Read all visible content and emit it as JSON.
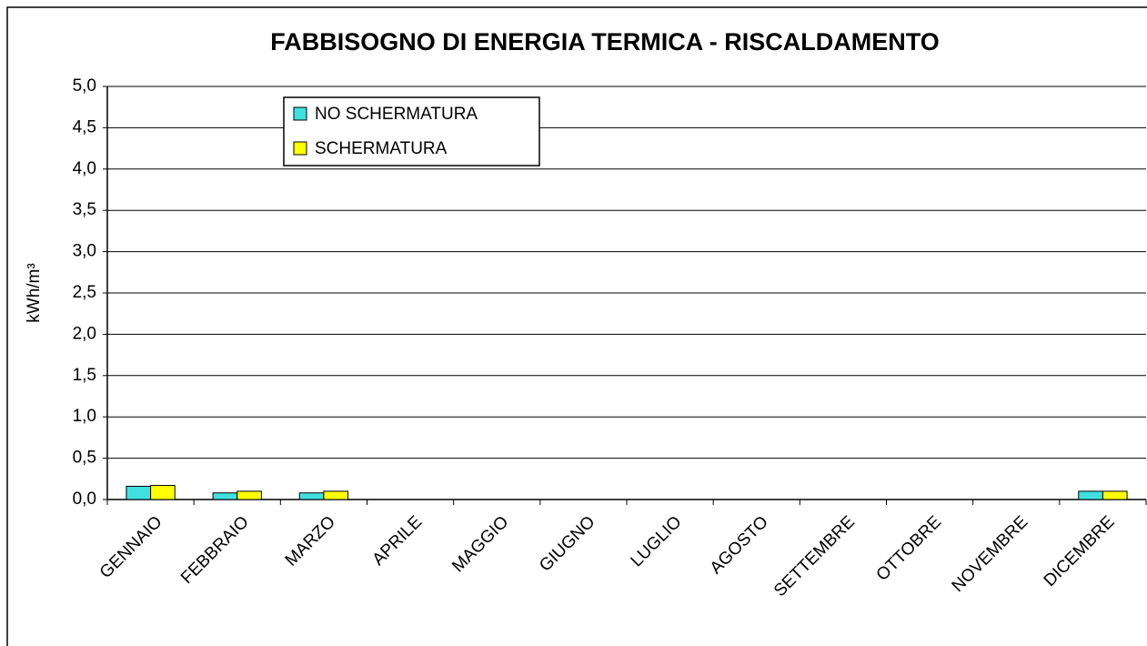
{
  "chart_data": {
    "type": "bar",
    "title": "FABBISOGNO DI ENERGIA TERMICA - RISCALDAMENTO",
    "y_label": "kWh/m³",
    "categories": [
      "GENNAIO",
      "FEBBRAIO",
      "MARZO",
      "APRILE",
      "MAGGIO",
      "GIUGNO",
      "LUGLIO",
      "AGOSTO",
      "SETTEMBRE",
      "OTTOBRE",
      "NOVEMBRE",
      "DICEMBRE"
    ],
    "series": [
      {
        "name": "NO SCHERMATURA",
        "color": "#40E0E0",
        "values": [
          0.16,
          0.08,
          0.08,
          0,
          0,
          0,
          0,
          0,
          0,
          0,
          0,
          0.1
        ]
      },
      {
        "name": "SCHERMATURA",
        "color": "#FFFF00",
        "values": [
          0.17,
          0.1,
          0.1,
          0,
          0,
          0,
          0,
          0,
          0,
          0,
          0,
          0.1
        ]
      }
    ],
    "ylim": [
      0,
      5
    ],
    "yticks": [
      {
        "value": 0,
        "label": "0,0"
      },
      {
        "value": 0.5,
        "label": "0,5"
      },
      {
        "value": 1,
        "label": "1,0"
      },
      {
        "value": 1.5,
        "label": "1,5"
      },
      {
        "value": 2,
        "label": "2,0"
      },
      {
        "value": 2.5,
        "label": "2,5"
      },
      {
        "value": 3,
        "label": "3,0"
      },
      {
        "value": 3.5,
        "label": "3,5"
      },
      {
        "value": 4,
        "label": "4,0"
      },
      {
        "value": 4.5,
        "label": "4,5"
      },
      {
        "value": 5,
        "label": "5,0"
      }
    ],
    "grid": true,
    "legend": "top-left"
  }
}
